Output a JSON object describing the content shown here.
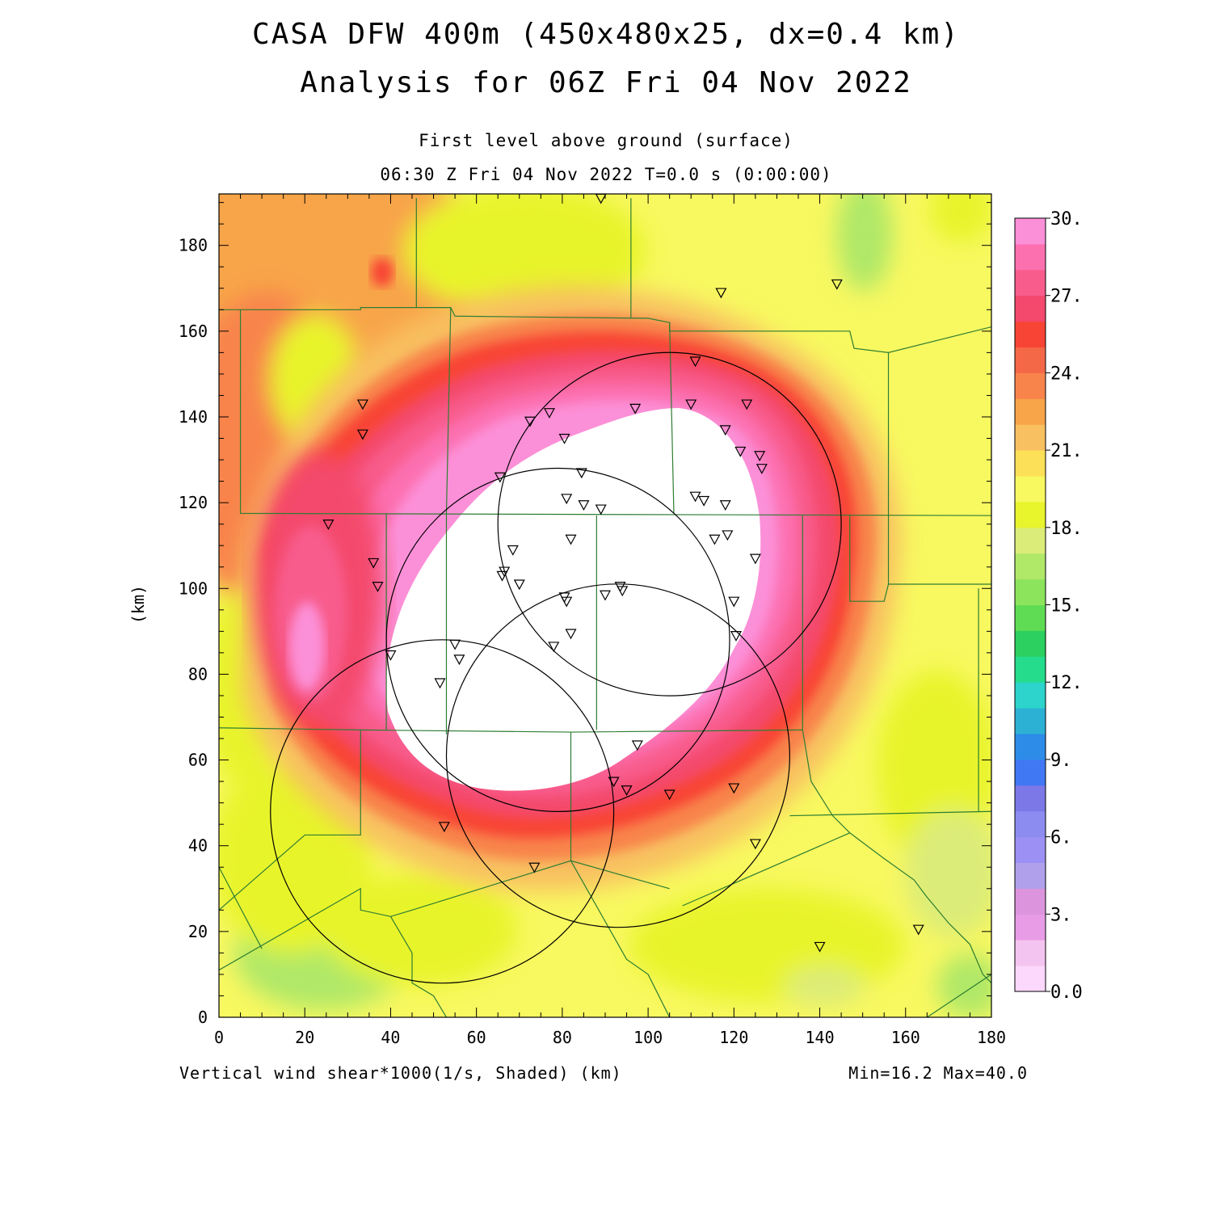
{
  "title": {
    "line1": "CASA DFW 400m (450x480x25, dx=0.4 km)",
    "line2": "Analysis for 06Z Fri 04 Nov 2022"
  },
  "subtitle": {
    "level": "First level above ground (surface)",
    "time": "06:30 Z Fri 04 Nov 2022    T=0.0 s (0:00:00)"
  },
  "footer": {
    "variable": "Vertical wind shear*1000(1/s, Shaded)  (km)",
    "minmax": "Min=16.2 Max=40.0"
  },
  "axes": {
    "x_range": [
      0,
      180
    ],
    "y_range": [
      0,
      192
    ],
    "x_ticks": [
      0,
      20,
      40,
      60,
      80,
      100,
      120,
      140,
      160,
      180
    ],
    "y_ticks": [
      0,
      20,
      40,
      60,
      80,
      100,
      120,
      140,
      160,
      180
    ],
    "y_label": "(km)"
  },
  "colorbar": {
    "labels": [
      "0.0",
      "3.",
      "6.",
      "9.",
      "12.",
      "15.",
      "18.",
      "21.",
      "24.",
      "27.",
      "30."
    ],
    "colors": [
      "#fcd8fc",
      "#f4c4f0",
      "#e89ce6",
      "#dc94dc",
      "#b0a0ec",
      "#9c90f4",
      "#8c8cf0",
      "#7c78e8",
      "#4078f4",
      "#2c8ce8",
      "#2cb0d4",
      "#2cd4cc",
      "#24dc8c",
      "#2cd060",
      "#60dc54",
      "#8ce45c",
      "#b0e868",
      "#dcec78",
      "#e8f42c",
      "#f8f860",
      "#fce058",
      "#f8c060",
      "#f8a448",
      "#f8844c",
      "#f46848",
      "#f84434",
      "#f4486c",
      "#f85c8c",
      "#fc70b0",
      "#fc90d8"
    ]
  },
  "map": {
    "field_colors": {
      "bg": "#f8f860",
      "yellow_green": "#e8f42c",
      "light_green": "#dcec78",
      "green": "#b0e868",
      "light_orange": "#fce058",
      "orange_a": "#f8c060",
      "orange_b": "#f8a448",
      "orange_c": "#f8844c",
      "red_orange": "#f46848",
      "red": "#f84434",
      "rose": "#f4486c",
      "pink": "#f85c8c",
      "pink2": "#fc70b0",
      "light_pink": "#fc90d8",
      "max": "#ffffff"
    },
    "county_line_color": "#2e7d32",
    "radar_circle_color": "#000000",
    "radar_circles": [
      {
        "cx": 105,
        "cy": 115,
        "r": 40
      },
      {
        "cx": 79,
        "cy": 88,
        "r": 40
      },
      {
        "cx": 52,
        "cy": 48,
        "r": 40
      },
      {
        "cx": 93,
        "cy": 61,
        "r": 40
      }
    ],
    "stations": [
      [
        89,
        191
      ],
      [
        117,
        169
      ],
      [
        144,
        171
      ],
      [
        33.5,
        143
      ],
      [
        33.5,
        136
      ],
      [
        111,
        153
      ],
      [
        110,
        143
      ],
      [
        97,
        142
      ],
      [
        77,
        141
      ],
      [
        72.5,
        139
      ],
      [
        80.5,
        135
      ],
      [
        118,
        137
      ],
      [
        123,
        143
      ],
      [
        121.5,
        132
      ],
      [
        126,
        131
      ],
      [
        126.5,
        128
      ],
      [
        65.5,
        126
      ],
      [
        84.5,
        127
      ],
      [
        81,
        121
      ],
      [
        85,
        119.5
      ],
      [
        89,
        118.5
      ],
      [
        111,
        121.5
      ],
      [
        113,
        120.5
      ],
      [
        118,
        119.5
      ],
      [
        115.5,
        111.5
      ],
      [
        118.5,
        112.5
      ],
      [
        82,
        111.5
      ],
      [
        68.5,
        109
      ],
      [
        25.5,
        115
      ],
      [
        36,
        106
      ],
      [
        66.5,
        104
      ],
      [
        66,
        103
      ],
      [
        70,
        101
      ],
      [
        37,
        100.5
      ],
      [
        125,
        107
      ],
      [
        93.5,
        100.5
      ],
      [
        94,
        99.5
      ],
      [
        90,
        98.5
      ],
      [
        80.5,
        98
      ],
      [
        81,
        97
      ],
      [
        120,
        97
      ],
      [
        82,
        89.5
      ],
      [
        120.5,
        89
      ],
      [
        78,
        86.5
      ],
      [
        55,
        87
      ],
      [
        40,
        84.5
      ],
      [
        56,
        83.5
      ],
      [
        51.5,
        78
      ],
      [
        97.5,
        63.5
      ],
      [
        92,
        55
      ],
      [
        120,
        53.5
      ],
      [
        95,
        53
      ],
      [
        105,
        52
      ],
      [
        52.5,
        44.5
      ],
      [
        125,
        40.5
      ],
      [
        73.5,
        35
      ],
      [
        140,
        16.5
      ],
      [
        163,
        20.5
      ]
    ]
  }
}
